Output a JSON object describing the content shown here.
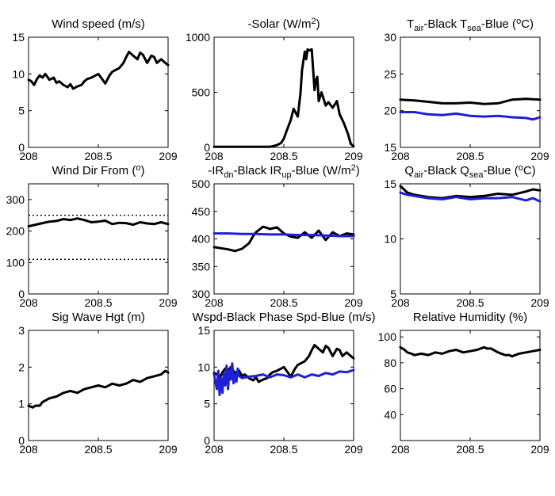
{
  "chart_data": [
    {
      "id": "wind-speed",
      "type": "line",
      "title": [
        {
          "t": "Wind speed (m/s)"
        }
      ],
      "xlim": [
        208,
        209
      ],
      "ylim": [
        0,
        15
      ],
      "xticks": [
        208,
        208.5,
        209
      ],
      "xticklabels": [
        "208",
        "208.5",
        "209"
      ],
      "yticks": [
        0,
        5,
        10,
        15
      ],
      "yticklabels": [
        "0",
        "5",
        "10",
        "15"
      ],
      "series": [
        {
          "color": "#000000",
          "x": [
            208,
            208.02,
            208.04,
            208.06,
            208.08,
            208.1,
            208.12,
            208.15,
            208.18,
            208.2,
            208.22,
            208.25,
            208.28,
            208.3,
            208.32,
            208.35,
            208.38,
            208.4,
            208.42,
            208.45,
            208.48,
            208.5,
            208.52,
            208.55,
            208.58,
            208.6,
            208.62,
            208.65,
            208.68,
            208.7,
            208.72,
            208.75,
            208.78,
            208.8,
            208.82,
            208.85,
            208.88,
            208.9,
            208.92,
            208.95,
            208.98,
            209
          ],
          "y": [
            9.2,
            9.0,
            8.5,
            9.3,
            9.8,
            9.5,
            10.0,
            9.2,
            9.5,
            8.8,
            9.0,
            8.5,
            8.2,
            8.6,
            8.0,
            8.3,
            8.5,
            9.0,
            9.3,
            9.5,
            9.8,
            10.0,
            9.5,
            8.7,
            9.8,
            10.3,
            10.5,
            10.8,
            11.5,
            12.3,
            13.0,
            12.5,
            12.0,
            12.9,
            12.6,
            11.5,
            12.5,
            12.3,
            11.5,
            12.0,
            11.5,
            11.2
          ]
        }
      ]
    },
    {
      "id": "solar",
      "type": "line",
      "title": [
        {
          "t": "-Solar (W/m"
        },
        {
          "t": "2",
          "sup": true
        },
        {
          "t": ")"
        }
      ],
      "xlim": [
        208,
        209
      ],
      "ylim": [
        0,
        1000
      ],
      "xticks": [
        208,
        208.5,
        209
      ],
      "xticklabels": [
        "208",
        "208.5",
        "209"
      ],
      "yticks": [
        0,
        500,
        1000
      ],
      "yticklabels": [
        "0",
        "500",
        "1000"
      ],
      "series": [
        {
          "color": "#000000",
          "x": [
            208,
            208.1,
            208.2,
            208.3,
            208.4,
            208.45,
            208.48,
            208.5,
            208.52,
            208.55,
            208.57,
            208.6,
            208.62,
            208.63,
            208.65,
            208.66,
            208.67,
            208.68,
            208.7,
            208.71,
            208.72,
            208.73,
            208.74,
            208.75,
            208.77,
            208.8,
            208.82,
            208.85,
            208.88,
            208.9,
            208.93,
            208.96,
            208.98,
            209
          ],
          "y": [
            5,
            5,
            5,
            5,
            5,
            20,
            40,
            80,
            150,
            250,
            350,
            280,
            500,
            700,
            870,
            800,
            890,
            880,
            890,
            700,
            520,
            610,
            640,
            420,
            500,
            380,
            410,
            360,
            420,
            300,
            220,
            120,
            30,
            10
          ]
        }
      ]
    },
    {
      "id": "temperature",
      "type": "line",
      "title": [
        {
          "t": "T"
        },
        {
          "t": "air",
          "sub": true
        },
        {
          "t": "-Black  T"
        },
        {
          "t": "sea",
          "sub": true
        },
        {
          "t": "-Blue ("
        },
        {
          "t": "o",
          "sup": true
        },
        {
          "t": "C)"
        }
      ],
      "xlim": [
        208,
        209
      ],
      "ylim": [
        15,
        30
      ],
      "xticks": [
        208,
        208.5,
        209
      ],
      "xticklabels": [
        "208",
        "208.5",
        "209"
      ],
      "yticks": [
        15,
        20,
        25,
        30
      ],
      "yticklabels": [
        "15",
        "20",
        "25",
        "30"
      ],
      "series": [
        {
          "color": "#000000",
          "x": [
            208,
            208.1,
            208.2,
            208.3,
            208.4,
            208.5,
            208.6,
            208.7,
            208.8,
            208.9,
            209
          ],
          "y": [
            21.5,
            21.4,
            21.2,
            21.0,
            21.0,
            21.1,
            20.9,
            21.0,
            21.5,
            21.6,
            21.5
          ]
        },
        {
          "color": "#1f1fd6",
          "x": [
            208,
            208.1,
            208.2,
            208.3,
            208.4,
            208.5,
            208.6,
            208.7,
            208.8,
            208.9,
            208.95,
            209
          ],
          "y": [
            19.8,
            19.8,
            19.5,
            19.4,
            19.6,
            19.3,
            19.2,
            19.3,
            19.1,
            19.0,
            18.8,
            19.1
          ]
        }
      ]
    },
    {
      "id": "wind-dir",
      "type": "line",
      "title": [
        {
          "t": "Wind Dir From ("
        },
        {
          "t": "o",
          "sup": true
        },
        {
          "t": ")"
        }
      ],
      "xlim": [
        208,
        209
      ],
      "ylim": [
        0,
        350
      ],
      "xticks": [
        208,
        208.5,
        209
      ],
      "xticklabels": [
        "208",
        "208.5",
        "209"
      ],
      "yticks": [
        0,
        100,
        200,
        300
      ],
      "yticklabels": [
        "0",
        "100",
        "200",
        "300"
      ],
      "reflines": [
        250,
        110
      ],
      "series": [
        {
          "color": "#000000",
          "x": [
            208,
            208.05,
            208.1,
            208.15,
            208.2,
            208.25,
            208.3,
            208.35,
            208.4,
            208.45,
            208.5,
            208.55,
            208.6,
            208.65,
            208.7,
            208.75,
            208.8,
            208.85,
            208.9,
            208.95,
            209
          ],
          "y": [
            215,
            220,
            225,
            230,
            232,
            238,
            235,
            240,
            235,
            228,
            230,
            233,
            222,
            226,
            225,
            220,
            228,
            224,
            222,
            228,
            222
          ]
        }
      ]
    },
    {
      "id": "longwave",
      "type": "line",
      "title": [
        {
          "t": "-IR"
        },
        {
          "t": "dn",
          "sub": true
        },
        {
          "t": "-Black  IR"
        },
        {
          "t": "up",
          "sub": true
        },
        {
          "t": "-Blue (W/m"
        },
        {
          "t": "2",
          "sup": true
        },
        {
          "t": ")"
        }
      ],
      "xlim": [
        208,
        209
      ],
      "ylim": [
        300,
        500
      ],
      "xticks": [
        208,
        208.5,
        209
      ],
      "xticklabels": [
        "208",
        "208.5",
        "209"
      ],
      "yticks": [
        300,
        350,
        400,
        450,
        500
      ],
      "yticklabels": [
        "300",
        "350",
        "400",
        "450",
        "500"
      ],
      "series": [
        {
          "color": "#000000",
          "x": [
            208,
            208.05,
            208.1,
            208.15,
            208.2,
            208.25,
            208.28,
            208.3,
            208.33,
            208.35,
            208.38,
            208.4,
            208.45,
            208.5,
            208.55,
            208.6,
            208.65,
            208.7,
            208.75,
            208.8,
            208.85,
            208.9,
            208.95,
            209
          ],
          "y": [
            385,
            383,
            381,
            378,
            382,
            392,
            405,
            412,
            418,
            422,
            420,
            418,
            421,
            410,
            404,
            402,
            412,
            402,
            415,
            398,
            412,
            405,
            410,
            408
          ]
        },
        {
          "color": "#1f1fd6",
          "x": [
            208,
            208.1,
            208.2,
            208.3,
            208.4,
            208.5,
            208.6,
            208.7,
            208.8,
            208.9,
            209
          ],
          "y": [
            410,
            410,
            409,
            409,
            408,
            408,
            407,
            407,
            406,
            405,
            405
          ]
        }
      ]
    },
    {
      "id": "humidity-q",
      "type": "line",
      "title": [
        {
          "t": "Q"
        },
        {
          "t": "air",
          "sub": true
        },
        {
          "t": "-Black  Q"
        },
        {
          "t": "sea",
          "sub": true
        },
        {
          "t": "-Blue ("
        },
        {
          "t": "o",
          "sup": true
        },
        {
          "t": "C)"
        }
      ],
      "xlim": [
        208,
        209
      ],
      "ylim": [
        5,
        15
      ],
      "xticks": [
        208,
        208.5,
        209
      ],
      "xticklabels": [
        "208",
        "208.5",
        "209"
      ],
      "yticks": [
        5,
        10,
        15
      ],
      "yticklabels": [
        "5",
        "10",
        "15"
      ],
      "series": [
        {
          "color": "#000000",
          "x": [
            208,
            208.05,
            208.1,
            208.2,
            208.3,
            208.4,
            208.5,
            208.6,
            208.7,
            208.8,
            208.9,
            208.95,
            209
          ],
          "y": [
            14.8,
            14.2,
            14.0,
            13.8,
            13.7,
            13.9,
            13.8,
            13.9,
            14.1,
            14.0,
            14.3,
            14.5,
            14.4
          ]
        },
        {
          "color": "#1f1fd6",
          "x": [
            208,
            208.05,
            208.1,
            208.2,
            208.3,
            208.4,
            208.5,
            208.6,
            208.7,
            208.8,
            208.9,
            208.95,
            209
          ],
          "y": [
            14.2,
            14.0,
            13.9,
            13.7,
            13.6,
            13.8,
            13.6,
            13.7,
            13.7,
            13.8,
            13.5,
            13.7,
            13.4
          ]
        }
      ]
    },
    {
      "id": "wave-height",
      "type": "line",
      "title": [
        {
          "t": "Sig Wave Hgt (m)"
        }
      ],
      "xlim": [
        208,
        209
      ],
      "ylim": [
        0,
        3
      ],
      "xticks": [
        208,
        208.5,
        209
      ],
      "xticklabels": [
        "208",
        "208.5",
        "209"
      ],
      "yticks": [
        0,
        1,
        2,
        3
      ],
      "yticklabels": [
        "0",
        "1",
        "2",
        "3"
      ],
      "series": [
        {
          "color": "#000000",
          "x": [
            208,
            208.03,
            208.05,
            208.08,
            208.1,
            208.15,
            208.2,
            208.25,
            208.3,
            208.35,
            208.4,
            208.45,
            208.5,
            208.55,
            208.6,
            208.65,
            208.7,
            208.75,
            208.8,
            208.85,
            208.9,
            208.95,
            208.98,
            209
          ],
          "y": [
            0.95,
            0.9,
            0.95,
            0.95,
            1.05,
            1.15,
            1.2,
            1.3,
            1.35,
            1.3,
            1.4,
            1.45,
            1.5,
            1.45,
            1.55,
            1.5,
            1.55,
            1.65,
            1.6,
            1.7,
            1.75,
            1.8,
            1.9,
            1.85
          ]
        }
      ]
    },
    {
      "id": "phase-speed",
      "type": "line",
      "title": [
        {
          "t": "Wspd-Black  Phase Spd-Blue (m/s)"
        }
      ],
      "xlim": [
        208,
        209
      ],
      "ylim": [
        0,
        15
      ],
      "xticks": [
        208,
        208.5,
        209
      ],
      "xticklabels": [
        "208",
        "208.5",
        "209"
      ],
      "yticks": [
        0,
        5,
        10,
        15
      ],
      "yticklabels": [
        "0",
        "5",
        "10",
        "15"
      ],
      "series": [
        {
          "color": "#000000",
          "x": [
            208,
            208.02,
            208.04,
            208.06,
            208.08,
            208.1,
            208.12,
            208.15,
            208.18,
            208.2,
            208.22,
            208.25,
            208.28,
            208.3,
            208.32,
            208.35,
            208.38,
            208.4,
            208.42,
            208.45,
            208.48,
            208.5,
            208.52,
            208.55,
            208.58,
            208.6,
            208.62,
            208.65,
            208.68,
            208.7,
            208.72,
            208.75,
            208.78,
            208.8,
            208.82,
            208.85,
            208.88,
            208.9,
            208.92,
            208.95,
            208.98,
            209
          ],
          "y": [
            9.2,
            9.0,
            8.5,
            9.3,
            9.8,
            9.5,
            10.0,
            9.2,
            9.5,
            8.8,
            9.0,
            8.5,
            8.2,
            8.6,
            8.0,
            8.3,
            8.5,
            9.0,
            9.3,
            9.5,
            9.8,
            10.0,
            9.5,
            8.7,
            9.8,
            10.3,
            10.5,
            10.8,
            11.5,
            12.3,
            13.0,
            12.5,
            12.0,
            12.9,
            12.6,
            11.5,
            12.5,
            12.3,
            11.5,
            12.0,
            11.5,
            11.2
          ]
        },
        {
          "color": "#1f1fd6",
          "x": [
            208,
            208.02,
            208.03,
            208.04,
            208.05,
            208.06,
            208.07,
            208.08,
            208.09,
            208.1,
            208.11,
            208.12,
            208.13,
            208.14,
            208.15,
            208.16,
            208.17,
            208.18,
            208.2,
            208.25,
            208.3,
            208.35,
            208.4,
            208.45,
            208.5,
            208.55,
            208.6,
            208.65,
            208.7,
            208.75,
            208.8,
            208.85,
            208.9,
            208.95,
            209
          ],
          "y": [
            9.0,
            7.0,
            9.5,
            6.2,
            8.5,
            6.5,
            9.2,
            7.5,
            10.2,
            7.0,
            9.6,
            8.3,
            10.5,
            7.8,
            9.0,
            8.0,
            9.8,
            8.8,
            8.5,
            8.7,
            8.8,
            9.0,
            8.6,
            9.0,
            8.9,
            8.6,
            9.0,
            8.6,
            9.0,
            8.8,
            9.2,
            9.0,
            9.4,
            9.3,
            9.6
          ]
        }
      ]
    },
    {
      "id": "relative-humidity",
      "type": "line",
      "title": [
        {
          "t": "Relative Humidity (%)"
        }
      ],
      "xlim": [
        208,
        209
      ],
      "ylim": [
        20,
        105
      ],
      "xticks": [
        208,
        208.5,
        209
      ],
      "xticklabels": [
        "208",
        "208.5",
        "209"
      ],
      "yticks": [
        40,
        60,
        80,
        100
      ],
      "yticklabels": [
        "40",
        "60",
        "80",
        "100"
      ],
      "series": [
        {
          "color": "#000000",
          "x": [
            208,
            208.03,
            208.05,
            208.08,
            208.1,
            208.15,
            208.2,
            208.25,
            208.3,
            208.35,
            208.4,
            208.45,
            208.5,
            208.55,
            208.6,
            208.62,
            208.65,
            208.7,
            208.75,
            208.78,
            208.8,
            208.85,
            208.9,
            208.95,
            209
          ],
          "y": [
            92,
            90,
            88,
            87,
            86,
            87,
            86,
            88,
            87,
            89,
            90,
            88,
            89,
            90,
            92,
            91,
            91,
            88,
            86,
            86,
            85,
            87,
            88,
            89,
            90
          ]
        }
      ]
    }
  ]
}
